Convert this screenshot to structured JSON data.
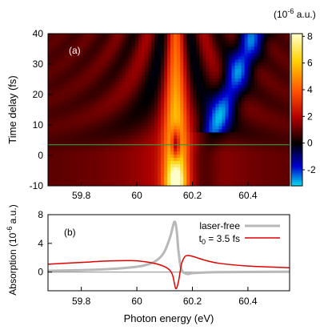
{
  "chart_data": [
    {
      "panel": "a",
      "type": "heatmap",
      "panel_label": "(a)",
      "ylabel": "Time delay (fs)",
      "xlim": [
        59.68,
        60.55
      ],
      "ylim": [
        -10,
        40
      ],
      "xticks": [
        59.8,
        60,
        60.2,
        60.4
      ],
      "xtick_labels": [
        "59.8",
        "60",
        "60.2",
        "60.4"
      ],
      "yticks": [
        -10,
        0,
        10,
        20,
        30,
        40
      ],
      "ytick_labels": [
        "-10",
        "0",
        "10",
        "20",
        "30",
        "40"
      ],
      "colorbar": {
        "unit_label": "(10",
        "unit_exp": "-6",
        "unit_tail": " a.u.)",
        "range": [
          -3.2,
          8.2
        ],
        "ticks": [
          -2,
          0,
          2,
          4,
          6,
          8
        ],
        "tick_labels": [
          "-2",
          "0",
          "2",
          "4",
          "6",
          "8"
        ],
        "colormap": [
          "#00e5ee",
          "#0000d0",
          "#000000",
          "#b00000",
          "#ff5000",
          "#ffd000",
          "#ffffcc"
        ]
      },
      "marker_line": {
        "time_delay": 3.5,
        "color": "#3a9a3a"
      }
    },
    {
      "panel": "b",
      "type": "line",
      "panel_label": "(b)",
      "xlabel": "Photon energy (eV)",
      "ylabel_main": "Absorption (10",
      "ylabel_exp": "-6",
      "ylabel_tail": " a.u.)",
      "xlim": [
        59.68,
        60.55
      ],
      "ylim": [
        -2.6,
        8
      ],
      "xticks": [
        59.8,
        60,
        60.2,
        60.4
      ],
      "xtick_labels": [
        "59.8",
        "60",
        "60.2",
        "60.4"
      ],
      "yticks": [
        0,
        4,
        8
      ],
      "ytick_labels": [
        "0",
        "4",
        "8"
      ],
      "legend_position": "top-right",
      "series": [
        {
          "name": "laser-free",
          "color": "#b8b8b8",
          "x": [
            59.68,
            59.8,
            59.9,
            60.0,
            60.05,
            60.08,
            60.1,
            60.12,
            60.13,
            60.135,
            60.14,
            60.145,
            60.15,
            60.16,
            60.18,
            60.2,
            60.25,
            60.3,
            60.4,
            60.55
          ],
          "y": [
            0.18,
            0.28,
            0.42,
            0.75,
            1.2,
            1.9,
            2.9,
            4.9,
            6.4,
            7.0,
            6.7,
            5.2,
            2.9,
            0.4,
            -0.25,
            -0.15,
            -0.05,
            0.0,
            0.02,
            0.05
          ]
        },
        {
          "name": "t0 = 3.5 fs",
          "name_main": "t",
          "name_sub": "0",
          "name_tail": " = 3.5 fs",
          "color": "#e00000",
          "x": [
            59.68,
            59.8,
            59.9,
            59.98,
            60.03,
            60.07,
            60.1,
            60.12,
            60.13,
            60.14,
            60.15,
            60.16,
            60.17,
            60.18,
            60.2,
            60.25,
            60.3,
            60.4,
            60.55
          ],
          "y": [
            1.1,
            1.35,
            1.55,
            1.6,
            1.45,
            1.15,
            0.75,
            0.2,
            -0.6,
            -2.3,
            -1.3,
            1.0,
            2.0,
            2.3,
            2.2,
            1.6,
            1.2,
            0.85,
            0.6
          ]
        }
      ]
    }
  ]
}
